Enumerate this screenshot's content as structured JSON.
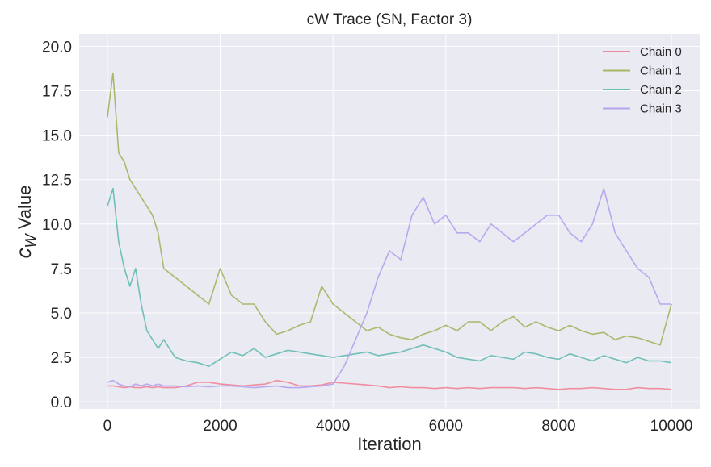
{
  "chart_data": {
    "type": "line",
    "title": "cW Trace (SN, Factor 3)",
    "xlabel": "Iteration",
    "ylabel_main": "c",
    "ylabel_sub": "W",
    "ylabel_rest": " Value",
    "xlim": [
      -500,
      10500
    ],
    "ylim": [
      -0.4,
      20.7
    ],
    "xticks": [
      0,
      2000,
      4000,
      6000,
      8000,
      10000
    ],
    "xtick_labels": [
      "0",
      "2000",
      "4000",
      "6000",
      "8000",
      "10000"
    ],
    "yticks": [
      0.0,
      2.5,
      5.0,
      7.5,
      10.0,
      12.5,
      15.0,
      17.5,
      20.0
    ],
    "ytick_labels": [
      "0.0",
      "2.5",
      "5.0",
      "7.5",
      "10.0",
      "12.5",
      "15.0",
      "17.5",
      "20.0"
    ],
    "grid": true,
    "legend_position": "top-right",
    "x": [
      0,
      100,
      200,
      300,
      400,
      500,
      600,
      700,
      800,
      900,
      1000,
      1200,
      1400,
      1600,
      1800,
      2000,
      2200,
      2400,
      2600,
      2800,
      3000,
      3200,
      3400,
      3600,
      3800,
      4000,
      4200,
      4400,
      4600,
      4800,
      5000,
      5200,
      5400,
      5600,
      5800,
      6000,
      6200,
      6400,
      6600,
      6800,
      7000,
      7200,
      7400,
      7600,
      7800,
      8000,
      8200,
      8400,
      8600,
      8800,
      9000,
      9200,
      9400,
      9600,
      9800,
      10000
    ],
    "series": [
      {
        "name": "Chain 0",
        "color": "#f0899b",
        "values": [
          0.9,
          0.9,
          0.85,
          0.8,
          0.85,
          0.8,
          0.8,
          0.85,
          0.8,
          0.85,
          0.8,
          0.8,
          0.9,
          1.1,
          1.1,
          1.0,
          0.95,
          0.9,
          0.95,
          1.0,
          1.2,
          1.1,
          0.9,
          0.9,
          0.95,
          1.1,
          1.05,
          1.0,
          0.95,
          0.9,
          0.8,
          0.85,
          0.8,
          0.8,
          0.75,
          0.8,
          0.75,
          0.8,
          0.75,
          0.8,
          0.8,
          0.8,
          0.75,
          0.8,
          0.75,
          0.7,
          0.75,
          0.75,
          0.8,
          0.75,
          0.7,
          0.7,
          0.8,
          0.75,
          0.75,
          0.7
        ]
      },
      {
        "name": "Chain 1",
        "color": "#a8b565",
        "values": [
          16.0,
          18.5,
          14.0,
          13.5,
          12.5,
          12.0,
          11.5,
          11.0,
          10.5,
          9.5,
          7.5,
          7.0,
          6.5,
          6.0,
          5.5,
          7.5,
          6.0,
          5.5,
          5.5,
          4.5,
          3.8,
          4.0,
          4.3,
          4.5,
          6.5,
          5.5,
          5.0,
          4.5,
          4.0,
          4.2,
          3.8,
          3.6,
          3.5,
          3.8,
          4.0,
          4.3,
          4.0,
          4.5,
          4.5,
          4.0,
          4.5,
          4.8,
          4.2,
          4.5,
          4.2,
          4.0,
          4.3,
          4.0,
          3.8,
          3.9,
          3.5,
          3.7,
          3.6,
          3.4,
          3.2,
          5.5
        ]
      },
      {
        "name": "Chain 2",
        "color": "#69bdb5",
        "values": [
          11.0,
          12.0,
          9.0,
          7.5,
          6.5,
          7.5,
          5.5,
          4.0,
          3.5,
          3.0,
          3.5,
          2.5,
          2.3,
          2.2,
          2.0,
          2.4,
          2.8,
          2.6,
          3.0,
          2.5,
          2.7,
          2.9,
          2.8,
          2.7,
          2.6,
          2.5,
          2.6,
          2.7,
          2.8,
          2.6,
          2.7,
          2.8,
          3.0,
          3.2,
          3.0,
          2.8,
          2.5,
          2.4,
          2.3,
          2.6,
          2.5,
          2.4,
          2.8,
          2.7,
          2.5,
          2.4,
          2.7,
          2.5,
          2.3,
          2.6,
          2.4,
          2.2,
          2.5,
          2.3,
          2.3,
          2.2
        ]
      },
      {
        "name": "Chain 3",
        "color": "#b5a4ef",
        "values": [
          1.1,
          1.2,
          1.0,
          0.9,
          0.85,
          1.0,
          0.9,
          1.0,
          0.9,
          1.0,
          0.9,
          0.9,
          0.85,
          0.9,
          0.85,
          0.9,
          0.9,
          0.85,
          0.8,
          0.85,
          0.9,
          0.8,
          0.8,
          0.85,
          0.9,
          1.0,
          2.0,
          3.5,
          5.0,
          7.0,
          8.5,
          8.0,
          10.5,
          11.5,
          10.0,
          10.5,
          9.5,
          9.5,
          9.0,
          10.0,
          9.5,
          9.0,
          9.5,
          10.0,
          10.5,
          10.5,
          9.5,
          9.0,
          10.0,
          12.0,
          9.5,
          8.5,
          7.5,
          7.0,
          5.5,
          5.5
        ]
      }
    ]
  }
}
